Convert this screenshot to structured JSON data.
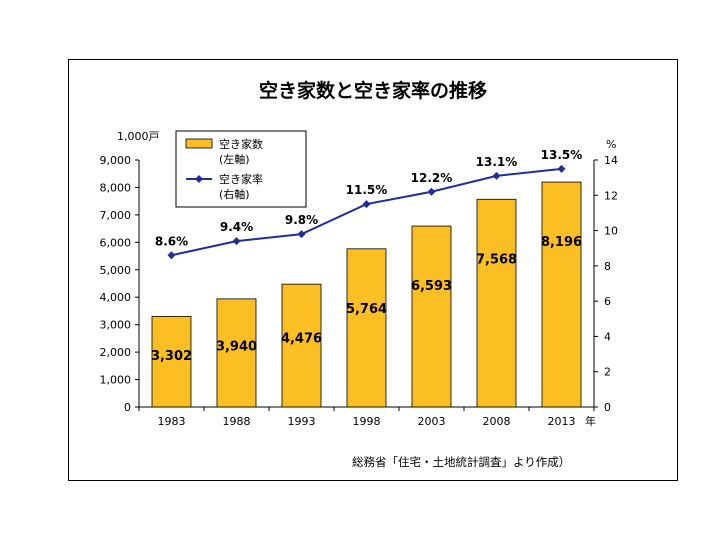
{
  "chart_data": {
    "type": "bar+line",
    "title": "空き家数と空き家率の推移",
    "categories": [
      "1983",
      "1988",
      "1993",
      "1998",
      "2003",
      "2008",
      "2013"
    ],
    "series": [
      {
        "name": "空き家数",
        "name_sub": "(左軸)",
        "type": "bar",
        "axis": "left",
        "values": [
          3302,
          3940,
          4476,
          5764,
          6593,
          7568,
          8196
        ],
        "labels": [
          "3,302",
          "3,940",
          "4,476",
          "5,764",
          "6,593",
          "7,568",
          "8,196"
        ],
        "color": "#FBBF24"
      },
      {
        "name": "空き家率",
        "name_sub": "(右軸)",
        "type": "line",
        "axis": "right",
        "values": [
          8.6,
          9.4,
          9.8,
          11.5,
          12.2,
          13.1,
          13.5
        ],
        "labels": [
          "8.6%",
          "9.4%",
          "9.8%",
          "11.5%",
          "12.2%",
          "13.1%",
          "13.5%"
        ],
        "color": "#1F2E9A"
      }
    ],
    "y_left": {
      "unit": "1,000戸",
      "ylim": [
        0,
        9000
      ],
      "ticks": [
        0,
        1000,
        2000,
        3000,
        4000,
        5000,
        6000,
        7000,
        8000,
        9000
      ],
      "tick_labels": [
        "0",
        "1,000",
        "2,000",
        "3,000",
        "4,000",
        "5,000",
        "6,000",
        "7,000",
        "8,000",
        "9,000"
      ]
    },
    "y_right": {
      "unit": "%",
      "ylim": [
        0,
        14
      ],
      "ticks": [
        0,
        2,
        4,
        6,
        8,
        10,
        12,
        14
      ],
      "tick_labels": [
        "0",
        "2",
        "4",
        "6",
        "8",
        "10",
        "12",
        "14"
      ]
    },
    "x_unit": "年",
    "grid": false,
    "legend_position": "top-left",
    "source": "総務省「住宅・土地統計調査」より作成）"
  }
}
